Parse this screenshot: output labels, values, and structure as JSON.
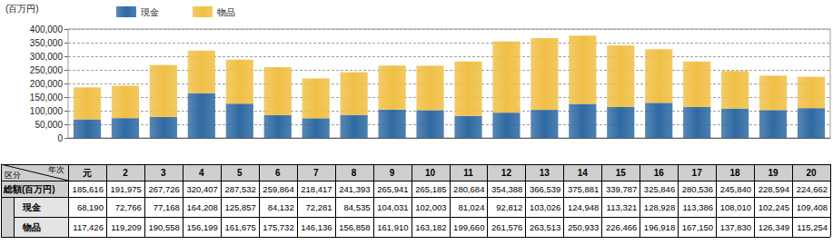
{
  "chart_data": {
    "type": "bar",
    "stacked": true,
    "grid": true,
    "legend": "top",
    "y_label": "(百万円)",
    "categories": [
      "元",
      "2",
      "3",
      "4",
      "5",
      "6",
      "7",
      "8",
      "9",
      "10",
      "11",
      "12",
      "13",
      "14",
      "15",
      "16",
      "17",
      "18",
      "19",
      "20"
    ],
    "series": [
      {
        "name": "現金",
        "color": "#2f6aa3",
        "values": [
          68190,
          72766,
          77168,
          164208,
          125857,
          84132,
          72281,
          84535,
          104031,
          102003,
          81024,
          92812,
          103026,
          124948,
          113321,
          128928,
          113386,
          108010,
          102245,
          109408
        ],
        "value_labels": [
          "68,190",
          "72,766",
          "77,168",
          "164,208",
          "125,857",
          "84,132",
          "72,281",
          "84,535",
          "104,031",
          "102,003",
          "81,024",
          "92,812",
          "103,026",
          "124,948",
          "113,321",
          "128,928",
          "113,386",
          "108,010",
          "102,245",
          "109,408"
        ]
      },
      {
        "name": "物品",
        "color": "#f0bf45",
        "values": [
          117426,
          119209,
          190558,
          156199,
          161675,
          175732,
          146136,
          156858,
          161910,
          163182,
          199660,
          261576,
          263513,
          250933,
          226466,
          196918,
          167150,
          137830,
          126349,
          115254
        ],
        "value_labels": [
          "117,426",
          "119,209",
          "190,558",
          "156,199",
          "161,675",
          "175,732",
          "146,136",
          "156,858",
          "161,910",
          "163,182",
          "199,660",
          "261,576",
          "263,513",
          "250,933",
          "226,466",
          "196,918",
          "167,150",
          "137,830",
          "126,349",
          "115,254"
        ]
      }
    ],
    "ylim": [
      0,
      400000
    ],
    "yticks": [
      0,
      {
        "value": 50000,
        "label": "50,000"
      },
      {
        "value": 100000,
        "label": "100,000"
      },
      {
        "value": 150000,
        "label": "150,000"
      },
      {
        "value": 200000,
        "label": "200,000"
      },
      {
        "value": 250000,
        "label": "250,000"
      },
      {
        "value": 300000,
        "label": "300,000"
      },
      {
        "value": 350000,
        "label": "350,000"
      },
      {
        "value": 400000,
        "label": "400,000"
      }
    ],
    "table": {
      "corner": [
        "区分",
        "年次"
      ],
      "total": {
        "name": "総額(百万円)",
        "value_labels": [
          "185,616",
          "191,975",
          "267,726",
          "320,407",
          "287,532",
          "259,864",
          "218,417",
          "241,393",
          "265,941",
          "265,185",
          "280,684",
          "354,388",
          "366,539",
          "375,881",
          "339,787",
          "325,846",
          "280,536",
          "245,840",
          "228,594",
          "224,662"
        ]
      }
    }
  }
}
